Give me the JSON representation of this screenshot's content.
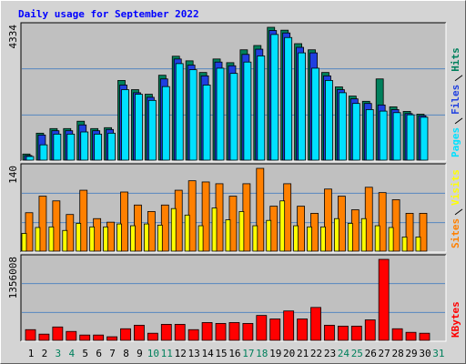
{
  "chart_data": [
    {
      "type": "bar",
      "title": "Daily usage for September 2022",
      "ylim": [
        0,
        4334
      ],
      "series": [
        {
          "name": "Hits",
          "color": "#00805c",
          "values": [
            200,
            880,
            1030,
            1030,
            1270,
            1030,
            1060,
            2600,
            2300,
            2150,
            2770,
            3390,
            3240,
            2860,
            3300,
            3180,
            3600,
            3740,
            4334,
            4240,
            3800,
            3600,
            2860,
            2390,
            2090,
            1920,
            2650,
            1740,
            1590,
            1500,
            null
          ]
        },
        {
          "name": "Files",
          "color": "#1f3fe0",
          "values": [
            150,
            820,
            960,
            960,
            1150,
            960,
            1000,
            2450,
            2200,
            2050,
            2650,
            3300,
            3100,
            2750,
            3200,
            3080,
            3450,
            3620,
            4230,
            4150,
            3680,
            3500,
            2750,
            2300,
            2000,
            1850,
            1800,
            1650,
            1520,
            1450,
            null
          ]
        },
        {
          "name": "Pages",
          "color": "#00e0ff",
          "values": [
            120,
            500,
            850,
            850,
            920,
            850,
            880,
            2300,
            2150,
            1950,
            2400,
            3150,
            2950,
            2450,
            3000,
            2830,
            3200,
            3400,
            4100,
            4000,
            3500,
            3000,
            2600,
            2200,
            1850,
            1650,
            1600,
            1550,
            1480,
            1400,
            null
          ]
        }
      ]
    },
    {
      "type": "bar",
      "ylim": [
        0,
        140
      ],
      "series": [
        {
          "name": "Visits",
          "color": "#ffff00",
          "values": [
            30,
            40,
            41,
            35,
            47,
            41,
            41,
            46,
            43,
            46,
            44,
            72,
            61,
            43,
            73,
            53,
            67,
            43,
            52,
            85,
            43,
            41,
            41,
            55,
            47,
            55,
            43,
            40,
            24,
            24,
            null
          ]
        },
        {
          "name": "Sites",
          "color": "#ff8000",
          "values": [
            65,
            93,
            85,
            62,
            103,
            55,
            49,
            100,
            78,
            67,
            78,
            103,
            119,
            117,
            114,
            93,
            114,
            140,
            76,
            114,
            76,
            64,
            105,
            93,
            70,
            108,
            99,
            87,
            64,
            64,
            null
          ]
        }
      ]
    },
    {
      "type": "bar",
      "ylim": [
        0,
        1356008
      ],
      "categories": [
        "1",
        "2",
        "3",
        "4",
        "5",
        "6",
        "7",
        "8",
        "9",
        "10",
        "11",
        "12",
        "13",
        "14",
        "15",
        "16",
        "17",
        "18",
        "19",
        "20",
        "21",
        "22",
        "23",
        "24",
        "25",
        "26",
        "27",
        "28",
        "29",
        "30",
        "31"
      ],
      "category_colors": [
        "#000000",
        "#000000",
        "#00805c",
        "#00805c",
        "#000000",
        "#000000",
        "#000000",
        "#000000",
        "#000000",
        "#00805c",
        "#00805c",
        "#000000",
        "#000000",
        "#000000",
        "#000000",
        "#000000",
        "#00805c",
        "#00805c",
        "#000000",
        "#000000",
        "#000000",
        "#000000",
        "#000000",
        "#00805c",
        "#00805c",
        "#000000",
        "#000000",
        "#000000",
        "#000000",
        "#000000",
        "#00805c"
      ],
      "series": [
        {
          "name": "KBytes",
          "color": "#ff0000",
          "values": [
            179000,
            104000,
            224000,
            149000,
            89000,
            89000,
            60000,
            194000,
            253000,
            119000,
            268000,
            268000,
            179000,
            298000,
            283000,
            298000,
            283000,
            417000,
            358000,
            492000,
            358000,
            551000,
            253000,
            238000,
            238000,
            343000,
            1356008,
            194000,
            134000,
            119000,
            null
          ]
        }
      ]
    }
  ]
}
